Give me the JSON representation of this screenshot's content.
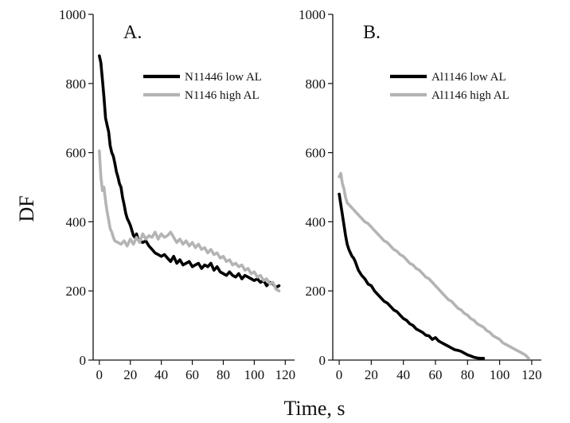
{
  "figure": {
    "ylabel": "DF",
    "xlabel": "Time, s"
  },
  "chart_data": [
    {
      "type": "line",
      "panel_label": "A.",
      "xlim": [
        -4,
        126
      ],
      "ylim": [
        0,
        1000
      ],
      "xticks": [
        0,
        20,
        40,
        60,
        80,
        100,
        120
      ],
      "yticks": [
        0,
        200,
        400,
        600,
        800,
        1000
      ],
      "legend_position": "top-right",
      "series": [
        {
          "name": "N11446 low AL",
          "color": "#000000",
          "x": [
            0,
            1,
            2,
            3,
            4,
            5,
            6,
            7,
            8,
            9,
            10,
            11,
            12,
            13,
            14,
            15,
            16,
            17,
            18,
            19,
            20,
            21,
            22,
            23,
            24,
            25,
            26,
            28,
            30,
            32,
            34,
            36,
            38,
            40,
            42,
            44,
            46,
            48,
            50,
            52,
            54,
            56,
            58,
            60,
            62,
            64,
            66,
            68,
            70,
            72,
            74,
            76,
            78,
            80,
            82,
            84,
            86,
            88,
            90,
            92,
            94,
            96,
            98,
            100,
            102,
            104,
            106,
            108,
            110,
            112,
            114,
            116
          ],
          "y": [
            880,
            860,
            810,
            760,
            700,
            680,
            660,
            620,
            600,
            590,
            570,
            545,
            530,
            510,
            500,
            470,
            450,
            425,
            410,
            400,
            390,
            375,
            360,
            355,
            365,
            350,
            345,
            340,
            345,
            330,
            320,
            310,
            305,
            300,
            305,
            295,
            285,
            300,
            280,
            290,
            275,
            280,
            285,
            270,
            275,
            280,
            265,
            275,
            270,
            280,
            260,
            270,
            255,
            250,
            245,
            255,
            245,
            240,
            250,
            235,
            245,
            240,
            235,
            230,
            235,
            225,
            230,
            215,
            225,
            220,
            210,
            215
          ]
        },
        {
          "name": "N1146 high AL",
          "color": "#b4b4b4",
          "x": [
            0,
            1,
            2,
            3,
            4,
            5,
            6,
            7,
            8,
            9,
            10,
            12,
            14,
            16,
            18,
            20,
            22,
            24,
            26,
            28,
            30,
            32,
            34,
            36,
            38,
            40,
            42,
            44,
            46,
            48,
            50,
            52,
            54,
            56,
            58,
            60,
            62,
            64,
            66,
            68,
            70,
            72,
            74,
            76,
            78,
            80,
            82,
            84,
            86,
            88,
            90,
            92,
            94,
            96,
            98,
            100,
            102,
            104,
            106,
            108,
            110,
            112,
            114,
            116
          ],
          "y": [
            605,
            530,
            490,
            500,
            460,
            430,
            405,
            380,
            370,
            355,
            345,
            340,
            335,
            345,
            330,
            350,
            335,
            355,
            340,
            365,
            350,
            360,
            355,
            370,
            350,
            365,
            355,
            360,
            370,
            355,
            340,
            350,
            335,
            345,
            330,
            340,
            325,
            335,
            320,
            325,
            310,
            320,
            305,
            310,
            295,
            300,
            285,
            290,
            275,
            280,
            270,
            275,
            260,
            265,
            250,
            255,
            240,
            245,
            230,
            235,
            220,
            225,
            205,
            200
          ]
        }
      ]
    },
    {
      "type": "line",
      "panel_label": "B.",
      "xlim": [
        -4,
        126
      ],
      "ylim": [
        0,
        1000
      ],
      "xticks": [
        0,
        20,
        40,
        60,
        80,
        100,
        120
      ],
      "yticks": [
        0,
        200,
        400,
        600,
        800,
        1000
      ],
      "legend_position": "top-right",
      "series": [
        {
          "name": "Al1146 low AL",
          "color": "#000000",
          "x": [
            0,
            1,
            2,
            3,
            4,
            5,
            6,
            7,
            8,
            9,
            10,
            12,
            14,
            16,
            18,
            20,
            22,
            24,
            26,
            28,
            30,
            32,
            34,
            36,
            38,
            40,
            42,
            44,
            46,
            48,
            50,
            52,
            54,
            56,
            58,
            60,
            62,
            64,
            66,
            68,
            70,
            72,
            74,
            76,
            78,
            80,
            82,
            84,
            86,
            88,
            90
          ],
          "y": [
            480,
            450,
            420,
            390,
            360,
            335,
            320,
            310,
            300,
            295,
            285,
            260,
            245,
            235,
            220,
            215,
            200,
            190,
            180,
            170,
            165,
            155,
            145,
            140,
            130,
            120,
            115,
            105,
            100,
            90,
            85,
            80,
            72,
            70,
            60,
            65,
            55,
            50,
            45,
            40,
            35,
            30,
            28,
            25,
            20,
            15,
            12,
            8,
            6,
            5,
            5
          ]
        },
        {
          "name": "Al1146 high AL",
          "color": "#b4b4b4",
          "x": [
            0,
            1,
            2,
            3,
            4,
            5,
            6,
            7,
            8,
            9,
            10,
            12,
            14,
            16,
            18,
            20,
            22,
            24,
            26,
            28,
            30,
            32,
            34,
            36,
            38,
            40,
            42,
            44,
            46,
            48,
            50,
            52,
            54,
            56,
            58,
            60,
            62,
            64,
            66,
            68,
            70,
            72,
            74,
            76,
            78,
            80,
            82,
            84,
            86,
            88,
            90,
            92,
            94,
            96,
            98,
            100,
            102,
            104,
            106,
            108,
            110,
            112,
            114,
            116,
            118
          ],
          "y": [
            530,
            540,
            510,
            495,
            470,
            455,
            450,
            445,
            440,
            435,
            430,
            420,
            410,
            400,
            395,
            385,
            375,
            365,
            355,
            345,
            340,
            330,
            320,
            315,
            305,
            300,
            290,
            280,
            275,
            265,
            260,
            250,
            240,
            235,
            225,
            215,
            205,
            195,
            185,
            175,
            170,
            160,
            150,
            145,
            135,
            130,
            120,
            115,
            105,
            100,
            95,
            85,
            80,
            70,
            65,
            60,
            50,
            45,
            40,
            35,
            30,
            25,
            20,
            15,
            5
          ]
        }
      ]
    }
  ]
}
